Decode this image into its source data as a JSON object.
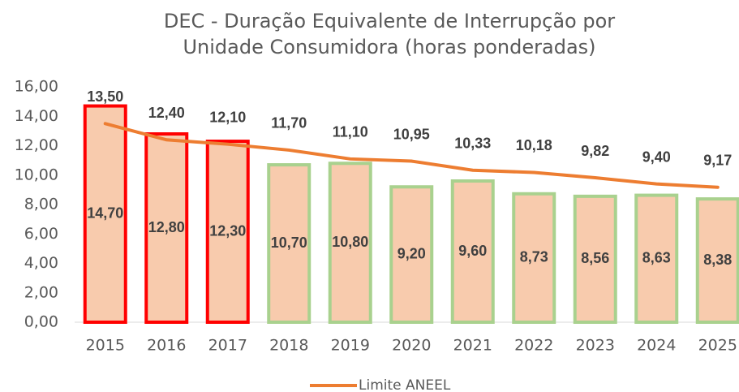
{
  "chart_data": {
    "type": "bar_line",
    "title": "DEC - Duração Equivalente de Interrupção por Unidade Consumidora (horas ponderadas)",
    "categories": [
      "2015",
      "2016",
      "2017",
      "2018",
      "2019",
      "2020",
      "2021",
      "2022",
      "2023",
      "2024",
      "2025"
    ],
    "series": [
      {
        "type": "bar",
        "color": "#f8cbad",
        "border_colors": [
          "#ff0000",
          "#ff0000",
          "#ff0000",
          "#a9d18e",
          "#a9d18e",
          "#a9d18e",
          "#a9d18e",
          "#a9d18e",
          "#a9d18e",
          "#a9d18e",
          "#a9d18e"
        ],
        "values": [
          14.7,
          12.8,
          12.3,
          10.7,
          10.8,
          9.2,
          9.6,
          8.73,
          8.56,
          8.63,
          8.38
        ],
        "value_labels": [
          "14,70",
          "12,80",
          "12,30",
          "10,70",
          "10,80",
          "9,20",
          "9,60",
          "8,73",
          "8,56",
          "8,63",
          "8,38"
        ]
      },
      {
        "type": "line",
        "name": "Limite ANEEL",
        "color": "#ed7d31",
        "values": [
          13.5,
          12.4,
          12.1,
          11.7,
          11.1,
          10.95,
          10.33,
          10.18,
          9.82,
          9.4,
          9.17
        ],
        "value_labels": [
          "13,50",
          "12,40",
          "12,10",
          "11,70",
          "11,10",
          "10,95",
          "10,33",
          "10,18",
          "9,82",
          "9,40",
          "9,17"
        ]
      }
    ],
    "ylim": [
      0,
      16
    ],
    "yticks": [
      {
        "value": 0,
        "label": "0,00"
      },
      {
        "value": 2,
        "label": "2,00"
      },
      {
        "value": 4,
        "label": "4,00"
      },
      {
        "value": 6,
        "label": "6,00"
      },
      {
        "value": 8,
        "label": "8,00"
      },
      {
        "value": 10,
        "label": "10,00"
      },
      {
        "value": 12,
        "label": "12,00"
      },
      {
        "value": 14,
        "label": "14,00"
      },
      {
        "value": 16,
        "label": "16,00"
      }
    ],
    "grid": false,
    "legend": "bottom"
  }
}
